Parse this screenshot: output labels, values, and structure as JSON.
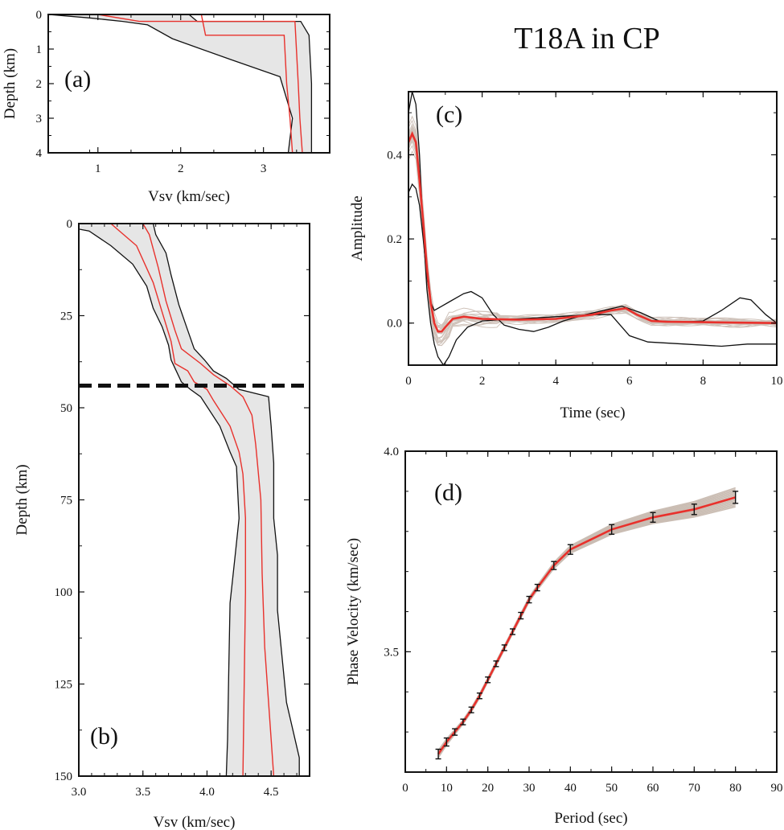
{
  "title": "T18A in CP",
  "colors": {
    "envelope_fill": "#e6e6e6",
    "envelope_edge": "#111111",
    "median": "#e8312c",
    "ensemble": "#a89282",
    "moho": "#111111",
    "axis": "#111111"
  },
  "chart_data": [
    {
      "id": "a",
      "panel_label": "(a)",
      "type": "area",
      "xlabel": "Vsv (km/sec)",
      "ylabel": "Depth (km)",
      "xlim": [
        0.4,
        3.8
      ],
      "ylim": [
        0,
        4
      ],
      "y_inverted": true,
      "xticks": [
        1,
        2,
        3
      ],
      "yticks": [
        0,
        1,
        2,
        3,
        4
      ],
      "x_tick_labels": [
        "1",
        "2",
        "3"
      ],
      "y_tick_labels": [
        "0",
        "1",
        "2",
        "3",
        "4"
      ],
      "envelope_min": [
        [
          0.4,
          0.0
        ],
        [
          0.9,
          0.1
        ],
        [
          1.3,
          0.2
        ],
        [
          1.6,
          0.3
        ],
        [
          1.9,
          0.7
        ],
        [
          2.6,
          1.3
        ],
        [
          3.2,
          1.8
        ],
        [
          3.35,
          3.0
        ],
        [
          3.3,
          4.0
        ]
      ],
      "envelope_max": [
        [
          1.0,
          0.0
        ],
        [
          2.1,
          0.0
        ],
        [
          2.2,
          0.2
        ],
        [
          3.45,
          0.2
        ],
        [
          3.55,
          0.6
        ],
        [
          3.58,
          2.0
        ],
        [
          3.58,
          4.0
        ]
      ],
      "model_lines": [
        [
          [
            1.0,
            0.0
          ],
          [
            2.25,
            0.0
          ],
          [
            2.3,
            0.6
          ],
          [
            3.25,
            0.6
          ],
          [
            3.28,
            2.0
          ],
          [
            3.32,
            3.0
          ],
          [
            3.35,
            4.0
          ]
        ],
        [
          [
            1.0,
            0.0
          ],
          [
            1.5,
            0.2
          ],
          [
            3.38,
            0.2
          ],
          [
            3.42,
            2.0
          ],
          [
            3.44,
            3.0
          ],
          [
            3.47,
            4.0
          ]
        ]
      ]
    },
    {
      "id": "b",
      "panel_label": "(b)",
      "type": "area",
      "xlabel": "Vsv (km/sec)",
      "ylabel": "Depth (km)",
      "xlim": [
        3.0,
        4.8
      ],
      "ylim": [
        0,
        150
      ],
      "y_inverted": true,
      "xticks": [
        3.0,
        3.5,
        4.0,
        4.5
      ],
      "yticks": [
        0,
        25,
        50,
        75,
        100,
        125,
        150
      ],
      "x_tick_labels": [
        "3.0",
        "3.5",
        "4.0",
        "4.5"
      ],
      "y_tick_labels": [
        "0",
        "25",
        "50",
        "75",
        "100",
        "125",
        "150"
      ],
      "moho_depth": 44,
      "envelope_min": [
        [
          3.0,
          1.5
        ],
        [
          3.08,
          2.0
        ],
        [
          3.25,
          6.0
        ],
        [
          3.42,
          11.0
        ],
        [
          3.53,
          17.0
        ],
        [
          3.58,
          23.0
        ],
        [
          3.65,
          28.0
        ],
        [
          3.7,
          33.0
        ],
        [
          3.72,
          37.0
        ],
        [
          3.76,
          40.0
        ],
        [
          3.8,
          43.0
        ],
        [
          3.87,
          45.0
        ],
        [
          3.95,
          47.0
        ],
        [
          4.1,
          55.0
        ],
        [
          4.18,
          62.0
        ],
        [
          4.23,
          66.0
        ],
        [
          4.25,
          80.0
        ],
        [
          4.22,
          90.0
        ],
        [
          4.18,
          103.0
        ],
        [
          4.17,
          120.0
        ],
        [
          4.16,
          140.0
        ],
        [
          4.15,
          150.0
        ]
      ],
      "envelope_max": [
        [
          3.0,
          0.0
        ],
        [
          3.58,
          0.0
        ],
        [
          3.6,
          3.0
        ],
        [
          3.68,
          8.0
        ],
        [
          3.72,
          14.0
        ],
        [
          3.78,
          22.0
        ],
        [
          3.85,
          29.0
        ],
        [
          3.9,
          34.0
        ],
        [
          3.98,
          37.0
        ],
        [
          4.05,
          40.0
        ],
        [
          4.15,
          42.0
        ],
        [
          4.25,
          45.0
        ],
        [
          4.48,
          47.0
        ],
        [
          4.5,
          55.0
        ],
        [
          4.52,
          65.0
        ],
        [
          4.52,
          80.0
        ],
        [
          4.55,
          90.0
        ],
        [
          4.55,
          105.0
        ],
        [
          4.62,
          130.0
        ],
        [
          4.72,
          145.0
        ],
        [
          4.72,
          150.0
        ]
      ],
      "model_lines": [
        [
          [
            3.0,
            0.0
          ],
          [
            3.25,
            0.0
          ],
          [
            3.3,
            1.5
          ],
          [
            3.45,
            6.0
          ],
          [
            3.58,
            16.0
          ],
          [
            3.65,
            24.0
          ],
          [
            3.72,
            32.0
          ],
          [
            3.75,
            38.0
          ],
          [
            3.85,
            40.0
          ],
          [
            3.9,
            43.0
          ],
          [
            4.0,
            45.0
          ],
          [
            4.05,
            48.0
          ],
          [
            4.18,
            55.0
          ],
          [
            4.25,
            62.0
          ],
          [
            4.28,
            68.0
          ],
          [
            4.3,
            80.0
          ],
          [
            4.3,
            100.0
          ],
          [
            4.29,
            125.0
          ],
          [
            4.28,
            150.0
          ]
        ],
        [
          [
            3.0,
            0.0
          ],
          [
            3.5,
            0.0
          ],
          [
            3.55,
            3.0
          ],
          [
            3.62,
            12.0
          ],
          [
            3.68,
            21.0
          ],
          [
            3.75,
            29.0
          ],
          [
            3.8,
            34.0
          ],
          [
            3.95,
            38.0
          ],
          [
            4.05,
            41.0
          ],
          [
            4.18,
            44.0
          ],
          [
            4.28,
            47.0
          ],
          [
            4.35,
            52.0
          ],
          [
            4.38,
            60.0
          ],
          [
            4.42,
            75.0
          ],
          [
            4.43,
            95.0
          ],
          [
            4.45,
            115.0
          ],
          [
            4.48,
            130.0
          ],
          [
            4.52,
            150.0
          ]
        ]
      ]
    },
    {
      "id": "c",
      "panel_label": "(c)",
      "type": "line",
      "xlabel": "Time (sec)",
      "ylabel": "Amplitude",
      "xlim": [
        0,
        10
      ],
      "ylim": [
        -0.1,
        0.55
      ],
      "xticks": [
        0,
        2,
        4,
        6,
        8,
        10
      ],
      "yticks": [
        0.0,
        0.2,
        0.4
      ],
      "x_tick_labels": [
        "0",
        "2",
        "4",
        "6",
        "8",
        "10"
      ],
      "y_tick_labels": [
        "0.0",
        "0.2",
        "0.4"
      ],
      "median": [
        [
          0.0,
          0.43
        ],
        [
          0.1,
          0.45
        ],
        [
          0.2,
          0.43
        ],
        [
          0.3,
          0.34
        ],
        [
          0.4,
          0.24
        ],
        [
          0.5,
          0.13
        ],
        [
          0.6,
          0.05
        ],
        [
          0.7,
          0.0
        ],
        [
          0.8,
          -0.02
        ],
        [
          0.9,
          -0.02
        ],
        [
          1.0,
          -0.01
        ],
        [
          1.1,
          0.0
        ],
        [
          1.2,
          0.01
        ],
        [
          1.5,
          0.015
        ],
        [
          2.0,
          0.01
        ],
        [
          3.0,
          0.008
        ],
        [
          4.0,
          0.01
        ],
        [
          5.0,
          0.02
        ],
        [
          5.5,
          0.03
        ],
        [
          5.9,
          0.035
        ],
        [
          6.2,
          0.02
        ],
        [
          6.6,
          0.005
        ],
        [
          7.0,
          0.003
        ],
        [
          8.0,
          0.002
        ],
        [
          9.0,
          0.001
        ],
        [
          10.0,
          0.0
        ]
      ],
      "observed_bounds": [
        [
          [
            0.0,
            0.5
          ],
          [
            0.1,
            0.55
          ],
          [
            0.2,
            0.52
          ],
          [
            0.3,
            0.4
          ],
          [
            0.4,
            0.22
          ],
          [
            0.5,
            0.08
          ],
          [
            0.6,
            0.0
          ],
          [
            0.7,
            -0.05
          ],
          [
            0.8,
            -0.08
          ],
          [
            0.95,
            -0.1
          ],
          [
            1.1,
            -0.08
          ],
          [
            1.3,
            -0.04
          ],
          [
            1.6,
            -0.01
          ],
          [
            2.0,
            0.005
          ],
          [
            2.5,
            0.008
          ],
          [
            3.0,
            0.01
          ],
          [
            4.0,
            0.015
          ],
          [
            5.0,
            0.02
          ],
          [
            5.5,
            0.02
          ],
          [
            6.0,
            -0.03
          ],
          [
            6.5,
            -0.045
          ],
          [
            7.5,
            -0.05
          ],
          [
            8.5,
            -0.055
          ],
          [
            9.2,
            -0.05
          ],
          [
            10.0,
            -0.05
          ]
        ],
        [
          [
            0.0,
            0.31
          ],
          [
            0.1,
            0.33
          ],
          [
            0.2,
            0.32
          ],
          [
            0.3,
            0.28
          ],
          [
            0.4,
            0.2
          ],
          [
            0.5,
            0.11
          ],
          [
            0.6,
            0.05
          ],
          [
            0.7,
            0.03
          ],
          [
            0.9,
            0.04
          ],
          [
            1.1,
            0.05
          ],
          [
            1.3,
            0.06
          ],
          [
            1.5,
            0.07
          ],
          [
            1.7,
            0.075
          ],
          [
            2.0,
            0.06
          ],
          [
            2.3,
            0.02
          ],
          [
            2.6,
            -0.005
          ],
          [
            3.0,
            -0.015
          ],
          [
            3.4,
            -0.02
          ],
          [
            3.8,
            -0.01
          ],
          [
            4.2,
            0.005
          ],
          [
            4.8,
            0.02
          ],
          [
            5.3,
            0.03
          ],
          [
            5.8,
            0.04
          ],
          [
            6.3,
            0.025
          ],
          [
            6.8,
            0.005
          ],
          [
            7.5,
            0.003
          ],
          [
            8.0,
            0.005
          ],
          [
            8.5,
            0.03
          ],
          [
            9.0,
            0.06
          ],
          [
            9.3,
            0.055
          ],
          [
            9.7,
            0.02
          ],
          [
            10.0,
            0.0
          ]
        ]
      ]
    },
    {
      "id": "d",
      "panel_label": "(d)",
      "type": "line",
      "xlabel": "Period (sec)",
      "ylabel": "Phase Velocity (km/sec)",
      "xlim": [
        0,
        90
      ],
      "ylim": [
        3.2,
        4.0
      ],
      "xticks": [
        0,
        10,
        20,
        30,
        40,
        50,
        60,
        70,
        80,
        90
      ],
      "yticks": [
        3.5,
        4.0
      ],
      "x_tick_labels": [
        "0",
        "10",
        "20",
        "30",
        "40",
        "50",
        "60",
        "70",
        "80",
        "90"
      ],
      "y_tick_labels": [
        "3.5",
        "4.0"
      ],
      "x": [
        8,
        10,
        12,
        14,
        16,
        18,
        20,
        22,
        24,
        26,
        28,
        30,
        32,
        36,
        40,
        50,
        60,
        70,
        80
      ],
      "y": [
        3.245,
        3.275,
        3.3,
        3.325,
        3.355,
        3.39,
        3.43,
        3.47,
        3.51,
        3.55,
        3.59,
        3.63,
        3.66,
        3.715,
        3.755,
        3.805,
        3.835,
        3.855,
        3.885
      ],
      "error": [
        0.012,
        0.01,
        0.008,
        0.007,
        0.007,
        0.007,
        0.007,
        0.007,
        0.007,
        0.007,
        0.008,
        0.008,
        0.008,
        0.01,
        0.012,
        0.012,
        0.012,
        0.013,
        0.015
      ]
    }
  ]
}
